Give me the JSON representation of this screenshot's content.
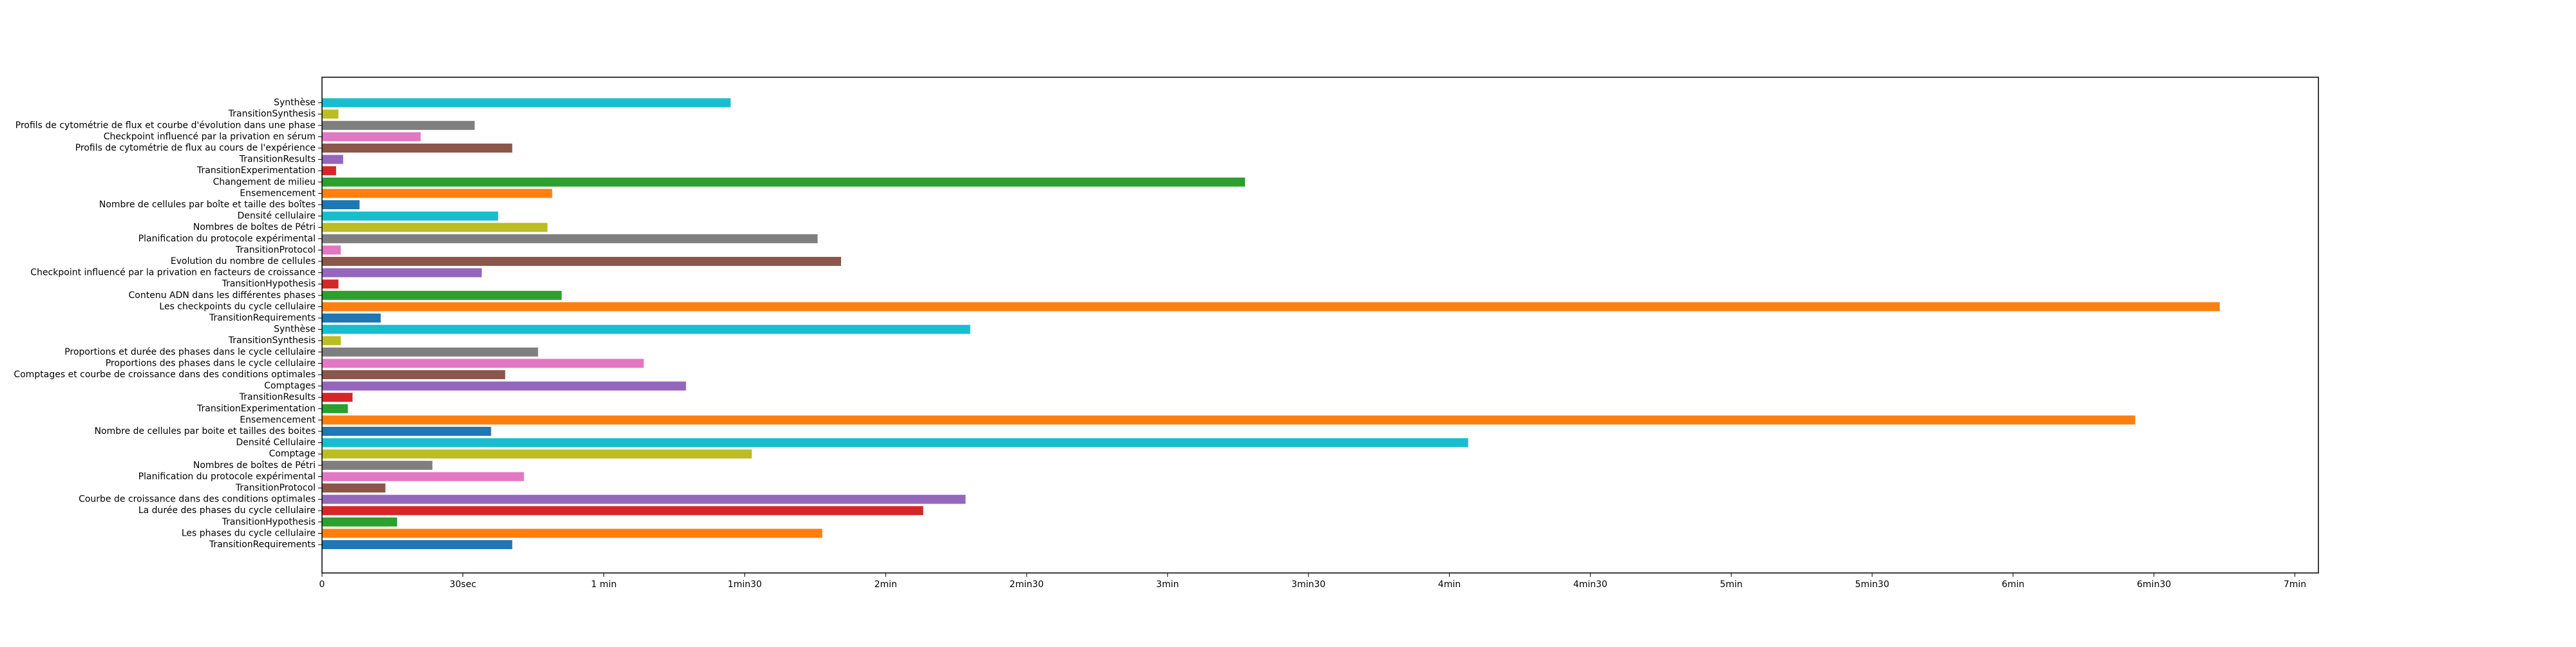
{
  "chart_data": {
    "type": "bar",
    "orientation": "horizontal",
    "title": "",
    "xlabel": "",
    "ylabel": "",
    "x_unit": "seconds",
    "xlim": [
      0,
      425
    ],
    "grid": false,
    "legend": "none",
    "x_ticks": [
      {
        "value": 0,
        "label": "0"
      },
      {
        "value": 30,
        "label": "30sec"
      },
      {
        "value": 60,
        "label": "1 min"
      },
      {
        "value": 90,
        "label": "1min30"
      },
      {
        "value": 120,
        "label": "2min"
      },
      {
        "value": 150,
        "label": "2min30"
      },
      {
        "value": 180,
        "label": "3min"
      },
      {
        "value": 210,
        "label": "3min30"
      },
      {
        "value": 240,
        "label": "4min"
      },
      {
        "value": 270,
        "label": "4min30"
      },
      {
        "value": 300,
        "label": "5min"
      },
      {
        "value": 330,
        "label": "5min30"
      },
      {
        "value": 360,
        "label": "6min"
      },
      {
        "value": 390,
        "label": "6min30"
      },
      {
        "value": 420,
        "label": "7min"
      }
    ],
    "bars": [
      {
        "label": "TransitionRequirements",
        "value": 40.5,
        "color": "#1f77b4"
      },
      {
        "label": "Les phases du cycle cellulaire",
        "value": 106.5,
        "color": "#ff7f0e"
      },
      {
        "label": "TransitionHypothesis",
        "value": 16,
        "color": "#2ca02c"
      },
      {
        "label": "La durée des phases du cycle cellulaire",
        "value": 128,
        "color": "#d62728"
      },
      {
        "label": "Courbe de croissance dans des conditions optimales",
        "value": 137,
        "color": "#9467bd"
      },
      {
        "label": "TransitionProtocol",
        "value": 13.5,
        "color": "#8c564b"
      },
      {
        "label": "Planification du protocole expérimental",
        "value": 43,
        "color": "#e377c2"
      },
      {
        "label": "Nombres de boîtes de Pétri",
        "value": 23.5,
        "color": "#7f7f7f"
      },
      {
        "label": "Comptage",
        "value": 91.5,
        "color": "#bcbd22"
      },
      {
        "label": "Densité Cellulaire",
        "value": 244,
        "color": "#17becf"
      },
      {
        "label": "Nombre de cellules par boite et tailles des boites",
        "value": 36,
        "color": "#1f77b4"
      },
      {
        "label": "Ensemencement",
        "value": 386,
        "color": "#ff7f0e"
      },
      {
        "label": "TransitionExperimentation",
        "value": 5.5,
        "color": "#2ca02c"
      },
      {
        "label": "TransitionResults",
        "value": 6.5,
        "color": "#d62728"
      },
      {
        "label": "Comptages",
        "value": 77.5,
        "color": "#9467bd"
      },
      {
        "label": "Comptages et courbe de croissance dans des conditions optimales",
        "value": 39,
        "color": "#8c564b"
      },
      {
        "label": "Proportions des phases dans le cycle cellulaire",
        "value": 68.5,
        "color": "#e377c2"
      },
      {
        "label": "Proportions et durée des phases dans le cycle cellulaire",
        "value": 46,
        "color": "#7f7f7f"
      },
      {
        "label": "TransitionSynthesis",
        "value": 4,
        "color": "#bcbd22"
      },
      {
        "label": "Synthèse",
        "value": 138,
        "color": "#17becf"
      },
      {
        "label": "TransitionRequirements",
        "value": 12.5,
        "color": "#1f77b4"
      },
      {
        "label": "Les checkpoints du cycle cellulaire",
        "value": 404,
        "color": "#ff7f0e"
      },
      {
        "label": "Contenu ADN dans les différentes phases",
        "value": 51,
        "color": "#2ca02c"
      },
      {
        "label": "TransitionHypothesis",
        "value": 3.5,
        "color": "#d62728"
      },
      {
        "label": "Checkpoint influencé par la privation en facteurs de croissance",
        "value": 34,
        "color": "#9467bd"
      },
      {
        "label": "Evolution du nombre de cellules",
        "value": 110.5,
        "color": "#8c564b"
      },
      {
        "label": "TransitionProtocol",
        "value": 4,
        "color": "#e377c2"
      },
      {
        "label": "Planification du protocole expérimental",
        "value": 105.5,
        "color": "#7f7f7f"
      },
      {
        "label": "Nombres de boîtes de Pétri",
        "value": 48,
        "color": "#bcbd22"
      },
      {
        "label": "Densité cellulaire",
        "value": 37.5,
        "color": "#17becf"
      },
      {
        "label": "Nombre de cellules par boîte et taille des boîtes",
        "value": 8,
        "color": "#1f77b4"
      },
      {
        "label": "Ensemencement",
        "value": 49,
        "color": "#ff7f0e"
      },
      {
        "label": "Changement de milieu",
        "value": 196.5,
        "color": "#2ca02c"
      },
      {
        "label": "TransitionExperimentation",
        "value": 3,
        "color": "#d62728"
      },
      {
        "label": "TransitionResults",
        "value": 4.5,
        "color": "#9467bd"
      },
      {
        "label": "Profils de cytométrie de flux au cours de l'expérience",
        "value": 40.5,
        "color": "#8c564b"
      },
      {
        "label": "Checkpoint influencé par la privation en sérum",
        "value": 21,
        "color": "#e377c2"
      },
      {
        "label": "Profils de cytométrie de flux et courbe d'évolution dans une phase",
        "value": 32.5,
        "color": "#7f7f7f"
      },
      {
        "label": "TransitionSynthesis",
        "value": 3.5,
        "color": "#bcbd22"
      },
      {
        "label": "Synthèse",
        "value": 87,
        "color": "#17becf"
      }
    ]
  }
}
